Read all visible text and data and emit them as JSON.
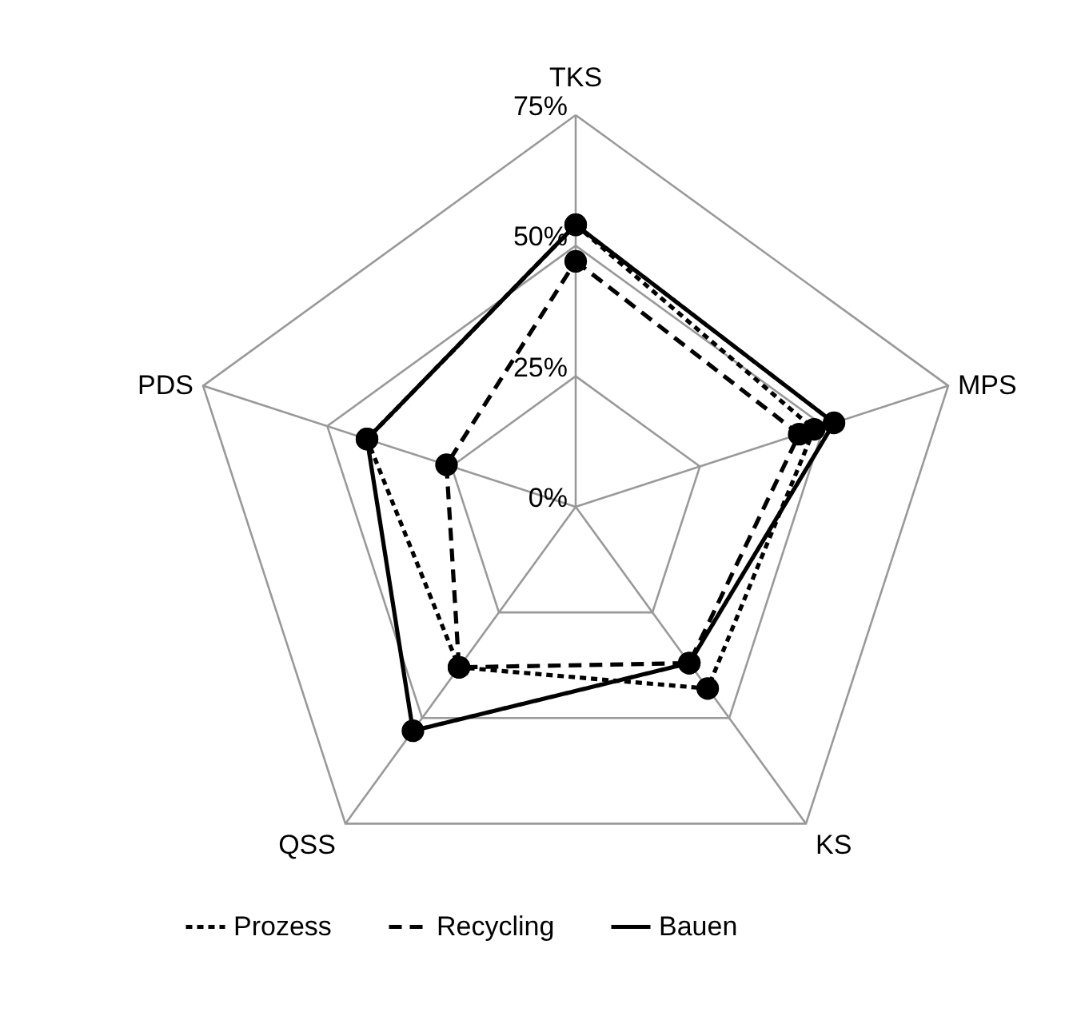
{
  "chart_data": {
    "type": "radar",
    "categories": [
      "TKS",
      "MPS",
      "KS",
      "QSS",
      "PDS"
    ],
    "series": [
      {
        "name": "Prozess",
        "color": "#000000",
        "line_style": "dotted",
        "values": [
          54,
          48,
          43,
          38,
          42
        ]
      },
      {
        "name": "Recycling",
        "color": "#000000",
        "line_style": "dashed",
        "values": [
          47,
          45,
          37,
          38,
          26
        ]
      },
      {
        "name": "Bauen",
        "color": "#000000",
        "line_style": "solid",
        "values": [
          54,
          52,
          37,
          53,
          42
        ]
      }
    ],
    "ylim": [
      0,
      75
    ],
    "yticks": [
      {
        "value": 0,
        "label": "0%"
      },
      {
        "value": 25,
        "label": "25%"
      },
      {
        "value": 50,
        "label": "50%"
      },
      {
        "value": 75,
        "label": "75%"
      }
    ],
    "grid": true,
    "marker": "circle",
    "legend": "bottom"
  }
}
